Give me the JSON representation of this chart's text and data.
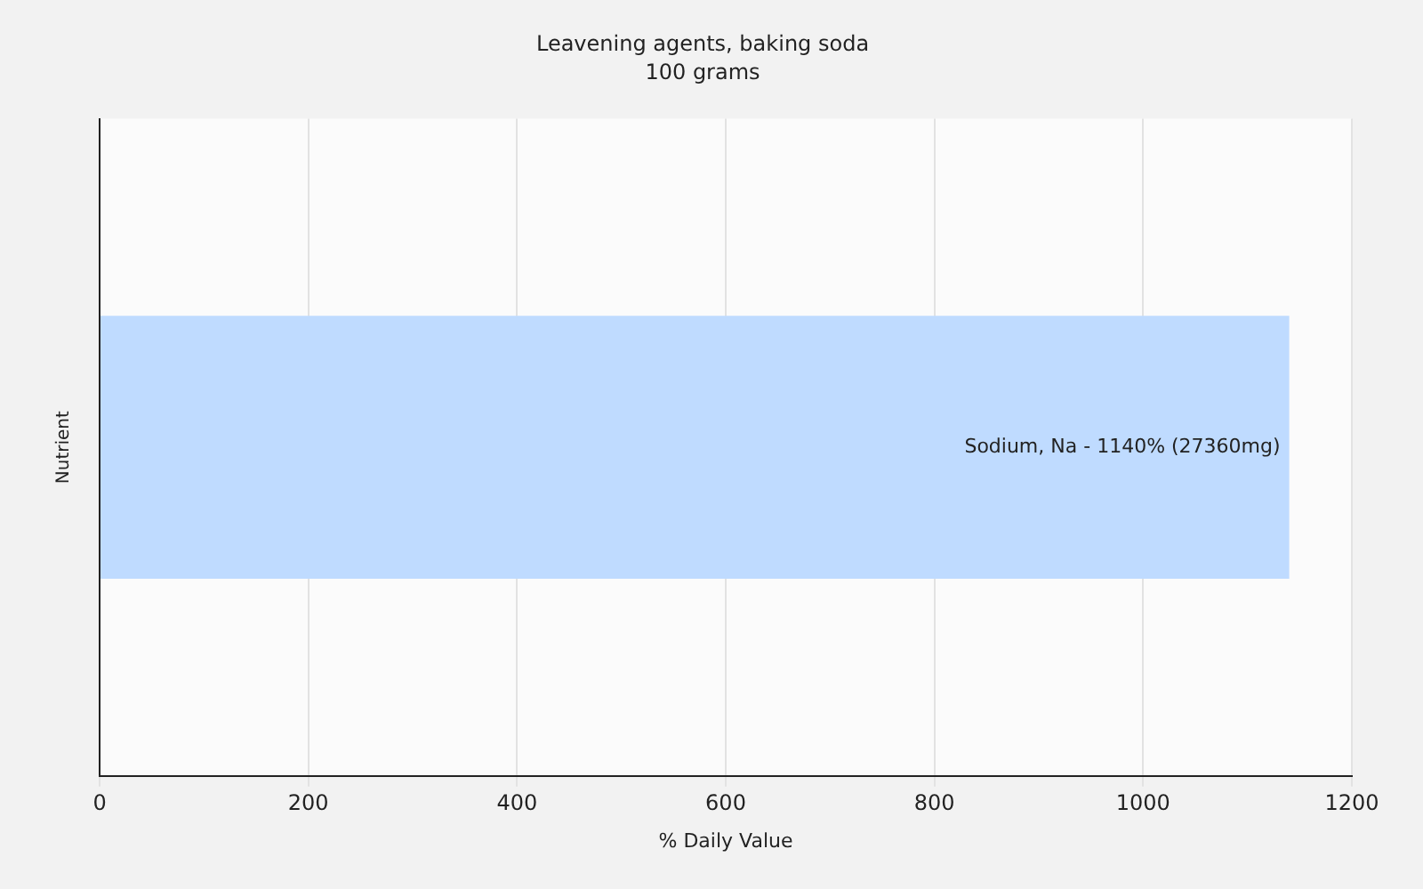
{
  "chart_data": {
    "type": "bar",
    "orientation": "horizontal",
    "title": "Leavening agents, baking soda",
    "subtitle": "100 grams",
    "xlabel": "% Daily Value",
    "ylabel": "Nutrient",
    "categories": [
      null
    ],
    "series": [
      {
        "color": "#bfdbff",
        "values": [
          1140
        ]
      }
    ],
    "annotations": [
      {
        "text": "Sodium, Na - 1140% (27360mg)",
        "x": 1140
      }
    ],
    "xlim": [
      0,
      1200
    ],
    "xticks": [
      0,
      200,
      400,
      600,
      800,
      1000,
      1200
    ],
    "grid": "x",
    "legend": false
  }
}
